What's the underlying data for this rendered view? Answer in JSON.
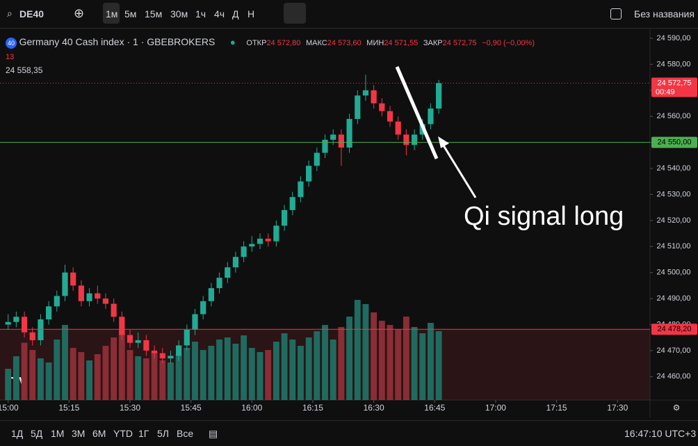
{
  "toolbar": {
    "symbol": "DE40",
    "intervals": [
      "1м",
      "5м",
      "15м",
      "30м",
      "1ч",
      "4ч",
      "Д",
      "Н"
    ],
    "layout_name": "Без названия"
  },
  "legend": {
    "badge": "40",
    "instrument": "Germany 40 Cash index · 1 · GBEBROKERS",
    "open_label": "ОТКР",
    "open": "24 572,80",
    "high_label": "МАКС",
    "high": "24 573,60",
    "low_label": "МИН",
    "low": "24 571,55",
    "close_label": "ЗАКР",
    "close": "24 572,75",
    "change": "−0,90 (−0,00%)",
    "indicator": "13",
    "ma_value": "24 558,35"
  },
  "chart_data": {
    "type": "candlestick",
    "candles": [
      [
        24480,
        24484,
        24478,
        24481
      ],
      [
        24481,
        24485,
        24479,
        24483
      ],
      [
        24483,
        24485,
        24475,
        24477
      ],
      [
        24477,
        24479,
        24472,
        24474
      ],
      [
        24474,
        24484,
        24472,
        24482
      ],
      [
        24482,
        24489,
        24480,
        24487
      ],
      [
        24487,
        24493,
        24485,
        24491
      ],
      [
        24491,
        24503,
        24489,
        24500
      ],
      [
        24500,
        24502,
        24493,
        24495
      ],
      [
        24495,
        24497,
        24487,
        24489
      ],
      [
        24489,
        24494,
        24487,
        24492
      ],
      [
        24492,
        24495,
        24488,
        24490
      ],
      [
        24490,
        24492,
        24486,
        24488
      ],
      [
        24488,
        24490,
        24481,
        24483
      ],
      [
        24483,
        24485,
        24474,
        24476
      ],
      [
        24476,
        24478,
        24471,
        24473
      ],
      [
        24473,
        24477,
        24471,
        24474
      ],
      [
        24474,
        24476,
        24468,
        24470
      ],
      [
        24470,
        24472,
        24467,
        24469
      ],
      [
        24469,
        24471,
        24465,
        24467
      ],
      [
        24467,
        24470,
        24465,
        24468
      ],
      [
        24468,
        24474,
        24466,
        24472
      ],
      [
        24472,
        24480,
        24470,
        24478
      ],
      [
        24478,
        24486,
        24476,
        24484
      ],
      [
        24484,
        24491,
        24482,
        24489
      ],
      [
        24489,
        24496,
        24487,
        24494
      ],
      [
        24494,
        24500,
        24492,
        24498
      ],
      [
        24498,
        24504,
        24496,
        24502
      ],
      [
        24502,
        24508,
        24500,
        24506
      ],
      [
        24506,
        24512,
        24504,
        24510
      ],
      [
        24510,
        24514,
        24508,
        24511
      ],
      [
        24511,
        24515,
        24509,
        24513
      ],
      [
        24513,
        24515,
        24510,
        24512
      ],
      [
        24512,
        24520,
        24510,
        24518
      ],
      [
        24518,
        24526,
        24516,
        24524
      ],
      [
        24524,
        24531,
        24522,
        24529
      ],
      [
        24529,
        24537,
        24527,
        24535
      ],
      [
        24535,
        24543,
        24533,
        24541
      ],
      [
        24541,
        24548,
        24539,
        24546
      ],
      [
        24546,
        24553,
        24544,
        24551
      ],
      [
        24551,
        24555,
        24549,
        24553
      ],
      [
        24553,
        24555,
        24541,
        24548
      ],
      [
        24548,
        24561,
        24546,
        24559
      ],
      [
        24559,
        24570,
        24557,
        24568
      ],
      [
        24568,
        24576,
        24566,
        24570
      ],
      [
        24570,
        24572,
        24563,
        24565
      ],
      [
        24565,
        24567,
        24560,
        24562
      ],
      [
        24562,
        24564,
        24556,
        24558
      ],
      [
        24558,
        24560,
        24551,
        24553
      ],
      [
        24553,
        24555,
        24545,
        24549
      ],
      [
        24549,
        24555,
        24547,
        24553
      ],
      [
        24553,
        24559,
        24551,
        24557
      ],
      [
        24557,
        24565,
        24555,
        24563
      ],
      [
        24563,
        24574,
        24561,
        24572.75
      ]
    ],
    "volumes": [
      30,
      42,
      55,
      48,
      40,
      36,
      58,
      72,
      50,
      46,
      38,
      44,
      52,
      60,
      68,
      48,
      42,
      40,
      46,
      38,
      36,
      44,
      50,
      56,
      48,
      52,
      58,
      60,
      54,
      62,
      50,
      46,
      48,
      56,
      64,
      58,
      52,
      60,
      66,
      72,
      58,
      70,
      80,
      96,
      92,
      84,
      76,
      72,
      68,
      80,
      70,
      64,
      74,
      66
    ],
    "vlim": [
      0,
      100
    ],
    "xlim": [
      -1,
      79
    ],
    "xticks": [
      {
        "value": 0,
        "label": "15:00"
      },
      {
        "value": 7.5,
        "label": "15:15"
      },
      {
        "value": 15,
        "label": "15:30"
      },
      {
        "value": 22.5,
        "label": "15:45"
      },
      {
        "value": 30,
        "label": "16:00"
      },
      {
        "value": 37.5,
        "label": "16:15"
      },
      {
        "value": 45,
        "label": "16:30"
      },
      {
        "value": 52.5,
        "label": "16:45"
      },
      {
        "value": 60,
        "label": "17:00"
      },
      {
        "value": 67.5,
        "label": "17:15"
      },
      {
        "value": 75,
        "label": "17:30"
      }
    ],
    "ylim": [
      24451,
      24594
    ],
    "yticks": [
      {
        "value": 24460,
        "label": "24 460,00"
      },
      {
        "value": 24470,
        "label": "24 470,00"
      },
      {
        "value": 24480,
        "label": "24 480,00"
      },
      {
        "value": 24490,
        "label": "24 490,00"
      },
      {
        "value": 24500,
        "label": "24 500,00"
      },
      {
        "value": 24510,
        "label": "24 510,00"
      },
      {
        "value": 24520,
        "label": "24 520,00"
      },
      {
        "value": 24530,
        "label": "24 530,00"
      },
      {
        "value": 24540,
        "label": "24 540,00"
      },
      {
        "value": 24550,
        "label": "24 550,00"
      },
      {
        "value": 24560,
        "label": "24 560,00"
      },
      {
        "value": 24570,
        "label": "24 570,00"
      },
      {
        "value": 24580,
        "label": "24 580,00"
      },
      {
        "value": 24590,
        "label": "24 590,00"
      }
    ],
    "levels": [
      {
        "value": 24572.75,
        "label": "24 572,75",
        "color": "#f23645",
        "dashed": true
      },
      {
        "value": 24550,
        "label": "24 550,00",
        "color": "#4caf50",
        "dashed": false
      },
      {
        "value": 24478.2,
        "label": "24 478,20",
        "color": "#f23645",
        "dashed": false
      }
    ],
    "countdown": "00:49",
    "up_color": "#22ab94",
    "down_color": "#f23645",
    "annotation": "Qi signal long"
  },
  "bottom_bar": {
    "ranges": [
      "1Д",
      "5Д",
      "1М",
      "3М",
      "6М",
      "YTD",
      "1Г",
      "5Л",
      "Все"
    ],
    "clock": "16:47:10 UTC+3"
  }
}
